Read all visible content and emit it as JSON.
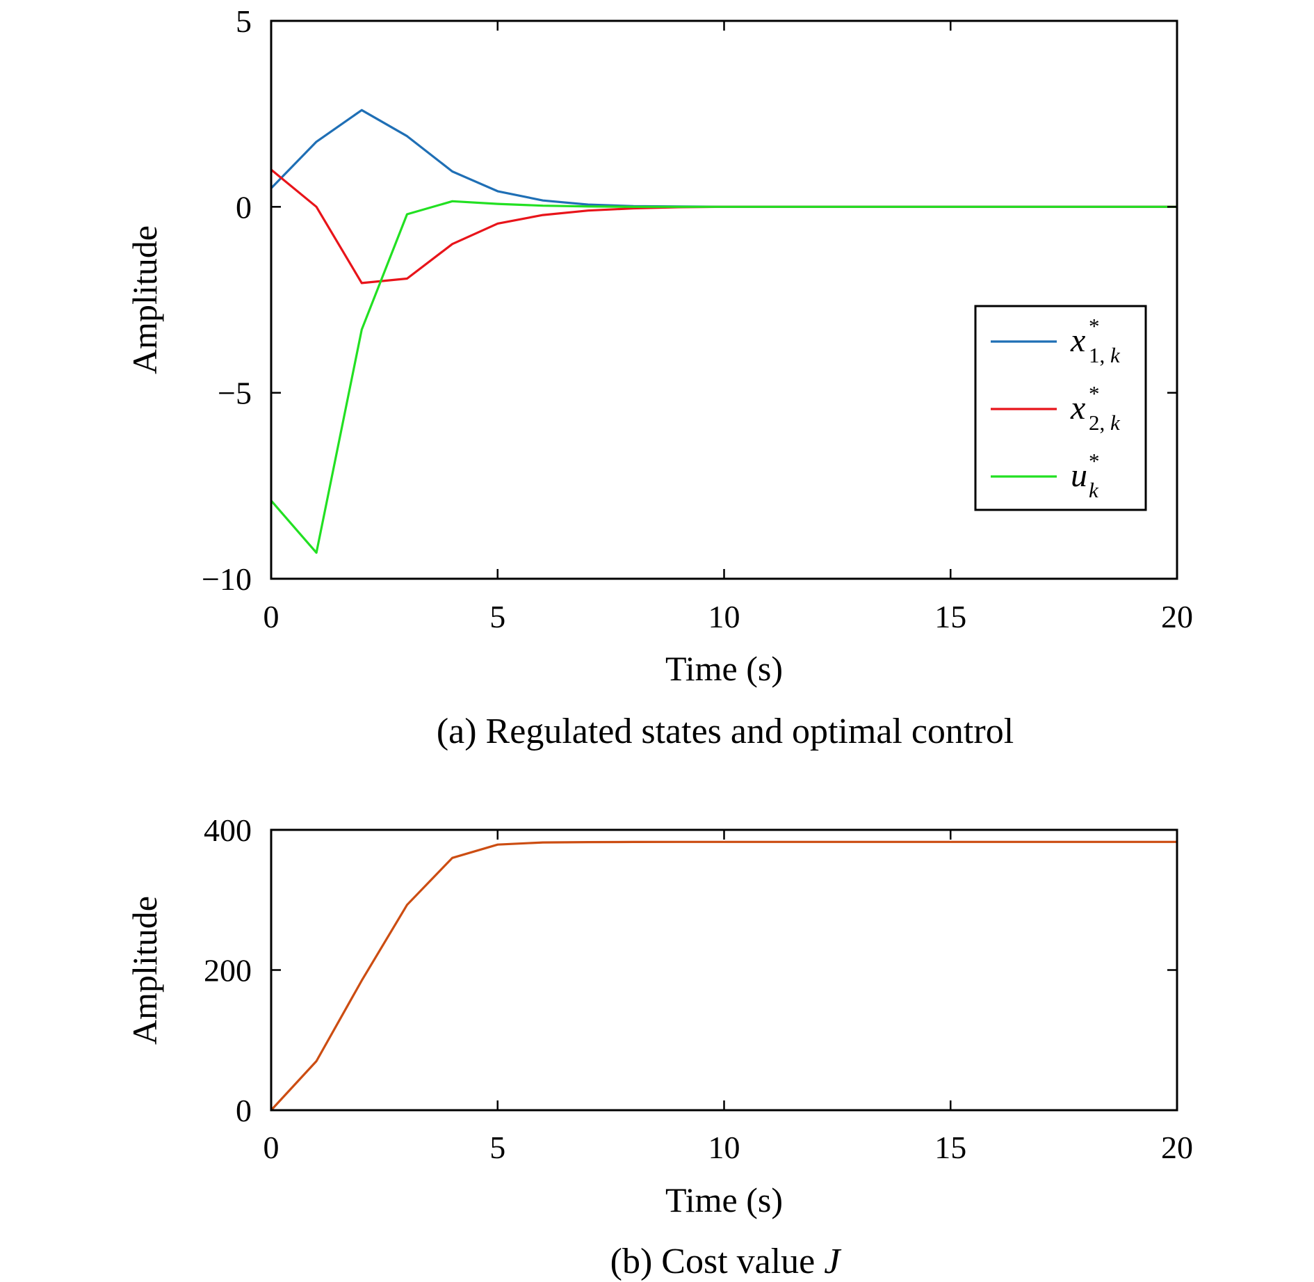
{
  "chart_data": [
    {
      "type": "line",
      "caption": "(a) Regulated states and optimal control",
      "xlabel": "Time (s)",
      "ylabel": "Amplitude",
      "xlim": [
        0,
        20
      ],
      "ylim": [
        -10,
        5
      ],
      "xticks": [
        0,
        5,
        10,
        15,
        20
      ],
      "yticks": [
        -10,
        -5,
        0,
        5
      ],
      "xtick_labels": [
        "0",
        "5",
        "10",
        "15",
        "20"
      ],
      "ytick_labels": [
        "−10",
        "−5",
        "0",
        "5"
      ],
      "legend_position": "lower-right",
      "x": [
        0,
        1,
        2,
        3,
        4,
        5,
        6,
        7,
        8,
        9,
        10,
        11,
        12,
        13,
        14,
        15,
        16,
        17,
        18,
        19,
        20
      ],
      "series": [
        {
          "symbol": "x",
          "subscript": "1, k",
          "superscript": "*",
          "color": "#1f6fb5",
          "values": [
            0.5,
            1.75,
            2.6,
            1.9,
            0.95,
            0.42,
            0.17,
            0.06,
            0.02,
            0.01,
            0,
            0,
            0,
            0,
            0,
            0,
            0,
            0,
            0,
            0,
            0
          ]
        },
        {
          "symbol": "x",
          "subscript": "2, k",
          "superscript": "*",
          "color": "#e8141a",
          "values": [
            1.0,
            0.0,
            -2.05,
            -1.93,
            -1.0,
            -0.45,
            -0.22,
            -0.1,
            -0.04,
            -0.01,
            0,
            0,
            0,
            0,
            0,
            0,
            0,
            0,
            0,
            0,
            0
          ]
        },
        {
          "symbol": "u",
          "subscript": "k",
          "superscript": "*",
          "color": "#22e022",
          "values": [
            -7.9,
            -9.3,
            -3.3,
            -0.2,
            0.15,
            0.08,
            0.03,
            0.01,
            0,
            0,
            0,
            0,
            0,
            0,
            0,
            0,
            0,
            0,
            0,
            0,
            0
          ]
        }
      ]
    },
    {
      "type": "line",
      "caption_prefix": "(b) Cost value ",
      "caption_symbol": "J",
      "xlabel": "Time (s)",
      "ylabel": "Amplitude",
      "xlim": [
        0,
        20
      ],
      "ylim": [
        0,
        400
      ],
      "xticks": [
        0,
        5,
        10,
        15,
        20
      ],
      "yticks": [
        0,
        200,
        400
      ],
      "xtick_labels": [
        "0",
        "5",
        "10",
        "15",
        "20"
      ],
      "ytick_labels": [
        "0",
        "200",
        "400"
      ],
      "x": [
        0,
        1,
        2,
        3,
        4,
        5,
        6,
        7,
        8,
        9,
        10,
        11,
        12,
        13,
        14,
        15,
        16,
        17,
        18,
        19,
        20
      ],
      "series": [
        {
          "color": "#cc4d12",
          "values": [
            0,
            70,
            185,
            293,
            360,
            379,
            382,
            382.5,
            382.7,
            382.8,
            382.8,
            382.8,
            382.8,
            382.8,
            382.8,
            382.8,
            382.8,
            382.8,
            382.8,
            382.8,
            382.8
          ]
        }
      ]
    }
  ]
}
